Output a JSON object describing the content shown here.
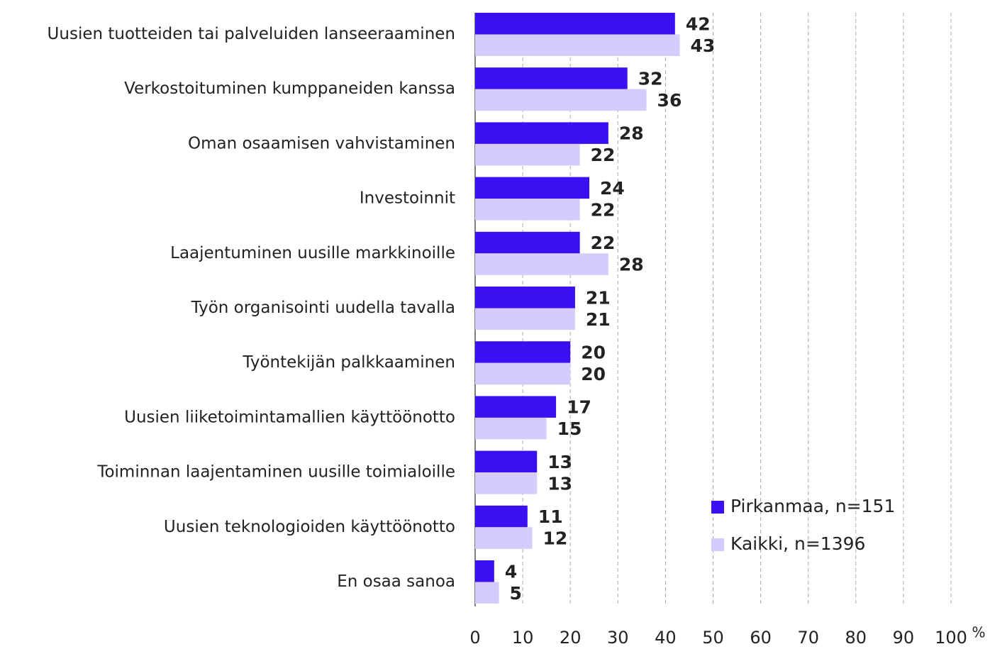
{
  "chart_data": {
    "type": "bar",
    "orientation": "horizontal",
    "categories": [
      "Uusien tuotteiden tai palveluiden lanseeraaminen",
      "Verkostoituminen kumppaneiden kanssa",
      "Oman osaamisen vahvistaminen",
      "Investoinnit",
      "Laajentuminen uusille markkinoille",
      "Työn organisointi uudella tavalla",
      "Työntekijän palkkaaminen",
      "Uusien liiketoimintamallien käyttöönotto",
      "Toiminnan laajentaminen uusille toimialoille",
      "Uusien teknologioiden käyttöönotto",
      "En osaa sanoa"
    ],
    "series": [
      {
        "name": "Pirkanmaa, n=151",
        "color": "#3a10f2",
        "values": [
          42,
          32,
          28,
          24,
          22,
          21,
          20,
          17,
          13,
          11,
          4
        ]
      },
      {
        "name": "Kaikki, n=1396",
        "color": "#d5cbfc",
        "values": [
          43,
          36,
          22,
          22,
          28,
          21,
          20,
          15,
          13,
          12,
          5
        ]
      }
    ],
    "xlabel": "%",
    "xlim": [
      0,
      100
    ],
    "xticks": [
      0,
      10,
      20,
      30,
      40,
      50,
      60,
      70,
      80,
      90,
      100
    ],
    "grid": true,
    "legend": "lower right"
  }
}
